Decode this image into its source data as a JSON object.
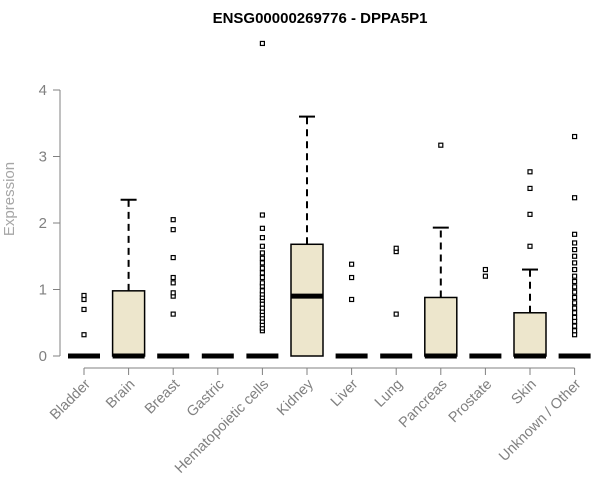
{
  "chart_data": {
    "type": "box",
    "title": "ENSG00000269776 - DPPA5P1",
    "xlabel": "",
    "ylabel": "Expression",
    "ylim": [
      0,
      4.7
    ],
    "yticks": [
      "0",
      "1",
      "2",
      "3",
      "4"
    ],
    "grid": false,
    "colors": {
      "box_fill": "#ede6cc",
      "stroke": "#000000",
      "axis": "#808080"
    },
    "categories": [
      "Bladder",
      "Brain",
      "Breast",
      "Gastric",
      "Hematopoietic cells",
      "Kidney",
      "Liver",
      "Lung",
      "Pancreas",
      "Prostate",
      "Skin",
      "Unknown / Other"
    ],
    "boxes": [
      {
        "category": "Bladder",
        "q1": 0,
        "median": 0,
        "q3": 0,
        "whisker_low": 0,
        "whisker_high": 0,
        "outliers": [
          0.32,
          0.7,
          0.85,
          0.91
        ]
      },
      {
        "category": "Brain",
        "q1": 0,
        "median": 0,
        "q3": 0.98,
        "whisker_low": 0,
        "whisker_high": 2.35,
        "outliers": []
      },
      {
        "category": "Breast",
        "q1": 0,
        "median": 0,
        "q3": 0,
        "whisker_low": 0,
        "whisker_high": 0,
        "outliers": [
          0.63,
          0.9,
          0.95,
          1.1,
          1.18,
          1.48,
          1.9,
          2.05
        ]
      },
      {
        "category": "Gastric",
        "q1": 0,
        "median": 0,
        "q3": 0,
        "whisker_low": 0,
        "whisker_high": 0,
        "outliers": []
      },
      {
        "category": "Hematopoietic cells",
        "q1": 0,
        "median": 0,
        "q3": 0,
        "whisker_low": 0,
        "whisker_high": 0,
        "outliers": [
          0.38,
          0.42,
          0.47,
          0.52,
          0.57,
          0.62,
          0.67,
          0.72,
          0.78,
          0.84,
          0.88,
          0.93,
          0.98,
          1.05,
          1.1,
          1.18,
          1.25,
          1.32,
          1.4,
          1.47,
          1.55,
          1.65,
          1.78,
          1.92,
          2.12,
          4.7
        ]
      },
      {
        "category": "Kidney",
        "q1": 0,
        "median": 0.9,
        "q3": 1.68,
        "whisker_low": 0,
        "whisker_high": 3.6,
        "outliers": []
      },
      {
        "category": "Liver",
        "q1": 0,
        "median": 0,
        "q3": 0,
        "whisker_low": 0,
        "whisker_high": 0,
        "outliers": [
          0.85,
          1.18,
          1.38
        ]
      },
      {
        "category": "Lung",
        "q1": 0,
        "median": 0,
        "q3": 0,
        "whisker_low": 0,
        "whisker_high": 0,
        "outliers": [
          0.63,
          1.57,
          1.62
        ]
      },
      {
        "category": "Pancreas",
        "q1": 0,
        "median": 0,
        "q3": 0.88,
        "whisker_low": 0,
        "whisker_high": 1.93,
        "outliers": [
          3.17
        ]
      },
      {
        "category": "Prostate",
        "q1": 0,
        "median": 0,
        "q3": 0,
        "whisker_low": 0,
        "whisker_high": 0,
        "outliers": [
          1.2,
          1.3
        ]
      },
      {
        "category": "Skin",
        "q1": 0,
        "median": 0,
        "q3": 0.65,
        "whisker_low": 0,
        "whisker_high": 1.3,
        "outliers": [
          1.65,
          2.13,
          2.52,
          2.77
        ]
      },
      {
        "category": "Unknown / Other",
        "q1": 0,
        "median": 0,
        "q3": 0,
        "whisker_low": 0,
        "whisker_high": 0,
        "outliers": [
          0.32,
          0.38,
          0.45,
          0.52,
          0.58,
          0.65,
          0.72,
          0.8,
          0.88,
          0.96,
          1.04,
          1.12,
          1.2,
          1.3,
          1.4,
          1.5,
          1.6,
          1.7,
          1.83,
          2.38,
          3.3
        ]
      }
    ]
  }
}
